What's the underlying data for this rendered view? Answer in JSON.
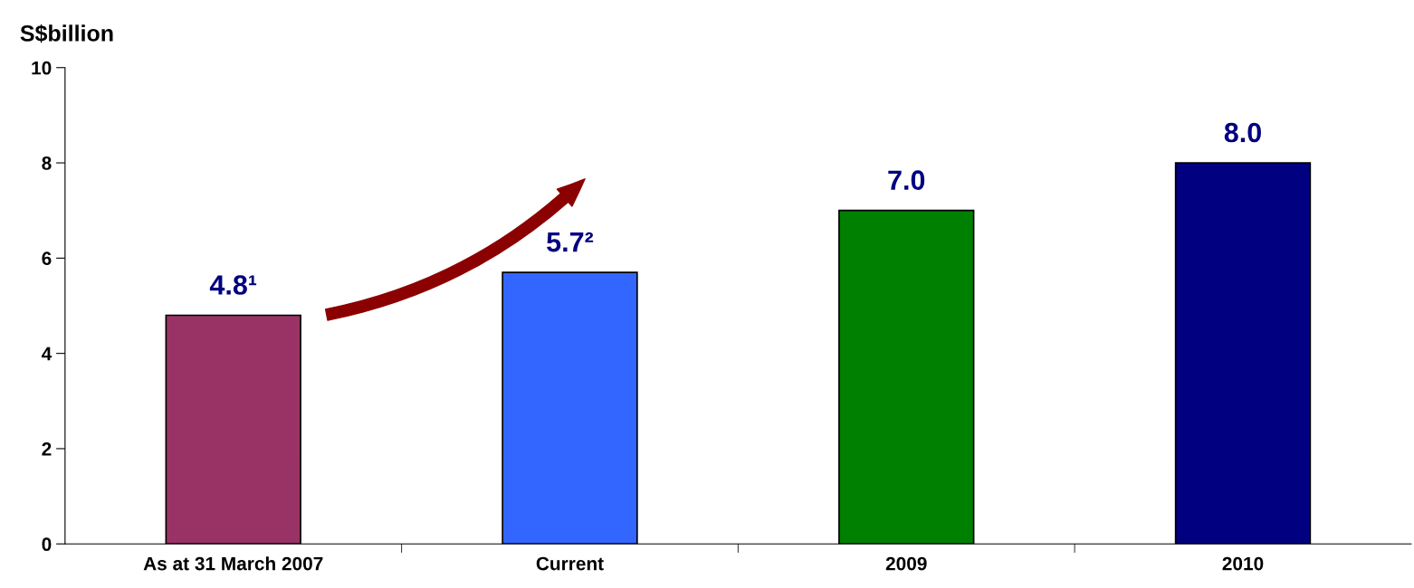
{
  "chart_data": {
    "type": "bar",
    "ylabel": "S$billion",
    "categories": [
      "As at 31 March 2007",
      "Current",
      "2009",
      "2010"
    ],
    "values": [
      4.8,
      5.7,
      7.0,
      8.0
    ],
    "colors": [
      "#993366",
      "#3366ff",
      "#008000",
      "#000080"
    ],
    "value_labels": [
      "4.8¹",
      "5.7²",
      "7.0",
      "8.0"
    ],
    "ylim": [
      0,
      10
    ],
    "yticks": [
      0,
      2,
      4,
      6,
      8,
      10
    ],
    "grid": false
  }
}
